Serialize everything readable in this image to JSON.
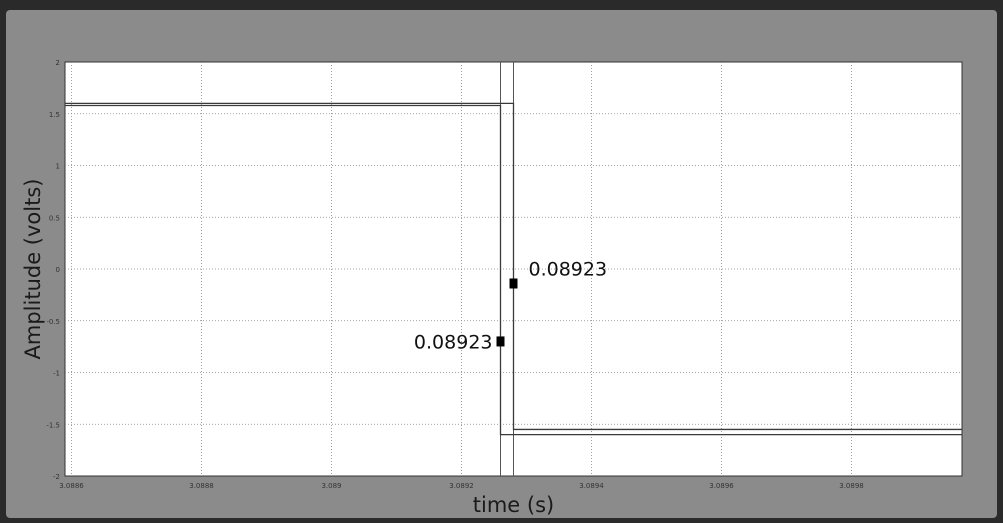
{
  "chart_data": {
    "type": "line",
    "title": "",
    "xlabel": "time (s)",
    "ylabel": "Amplitude (volts)",
    "xlim": [
      3.08859,
      3.08997
    ],
    "ylim": [
      -2,
      2
    ],
    "grid": true,
    "x_ticks": [
      {
        "value": 3.0886,
        "label": "3.0886"
      },
      {
        "value": 3.0888,
        "label": "3.0888"
      },
      {
        "value": 3.089,
        "label": "3.089"
      },
      {
        "value": 3.0892,
        "label": "3.0892"
      },
      {
        "value": 3.0894,
        "label": "3.0894"
      },
      {
        "value": 3.0896,
        "label": "3.0896"
      },
      {
        "value": 3.0898,
        "label": "3.0898"
      }
    ],
    "y_ticks": [
      {
        "value": 2,
        "label": "2"
      },
      {
        "value": 1.5,
        "label": "1.5"
      },
      {
        "value": 1,
        "label": "1"
      },
      {
        "value": 0.5,
        "label": "0.5"
      },
      {
        "value": 0,
        "label": "0"
      },
      {
        "value": -0.5,
        "label": "-0.5"
      },
      {
        "value": -1,
        "label": "-1"
      },
      {
        "value": -1.5,
        "label": "-1.5"
      },
      {
        "value": -2,
        "label": "-2"
      }
    ],
    "series": [
      {
        "x": [
          3.08859,
          3.08926,
          3.08926,
          3.08997
        ],
        "y": [
          1.58,
          1.58,
          -1.6,
          -1.6
        ]
      },
      {
        "x": [
          3.08859,
          3.08928,
          3.08928,
          3.08997
        ],
        "y": [
          1.6,
          1.6,
          -1.55,
          -1.55
        ]
      }
    ],
    "cursors": [
      3.08926,
      3.08928
    ],
    "annotations": [
      {
        "text": "0.08923",
        "x": 3.08926,
        "y": -0.7
      },
      {
        "text": "0.08923",
        "x": 3.08928,
        "y": -0.14
      }
    ]
  }
}
